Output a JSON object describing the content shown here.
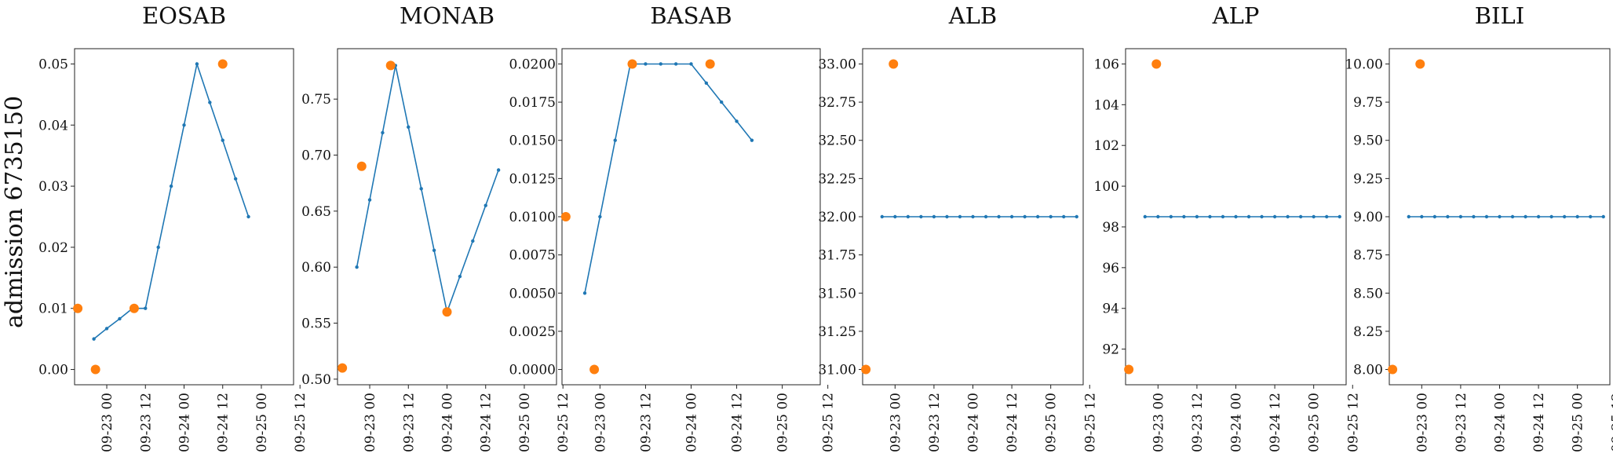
{
  "figure": {
    "ylabel": "admission 6735150"
  },
  "chart_data": [
    {
      "type": "line",
      "title": "EOSAB",
      "ylim": [
        -0.0025,
        0.0525
      ],
      "yticks": [
        0.0,
        0.01,
        0.02,
        0.03,
        0.04,
        0.05
      ],
      "ytick_labels": [
        "0.00",
        "0.01",
        "0.02",
        "0.03",
        "0.04",
        "0.05"
      ],
      "xlim": [
        -10,
        58
      ],
      "xticks": [
        0,
        12,
        24,
        36,
        48,
        60
      ],
      "xtick_labels": [
        "09-23 00",
        "09-23 12",
        "09-24 00",
        "09-24 12",
        "09-25 00",
        "09-25 12"
      ],
      "series": [
        {
          "style": "line",
          "x": [
            -4,
            0,
            4,
            8,
            12,
            16,
            20,
            24,
            28,
            32,
            36,
            40,
            44,
            48,
            52,
            56
          ],
          "y": [
            0.005,
            0.0067,
            0.0083,
            0.01,
            0.01,
            0.02,
            0.03,
            0.04,
            0.05,
            0.0437,
            0.0375,
            0.0312,
            0.025,
            null,
            null,
            null
          ]
        },
        {
          "style": "points",
          "x": [
            -9,
            -3.5,
            8.5,
            36
          ],
          "y": [
            0.01,
            0.0,
            0.01,
            0.05
          ]
        }
      ]
    },
    {
      "type": "line",
      "title": "MONAB",
      "ylim": [
        0.495,
        0.795
      ],
      "yticks": [
        0.5,
        0.55,
        0.6,
        0.65,
        0.7,
        0.75
      ],
      "ytick_labels": [
        "0.50",
        "0.55",
        "0.60",
        "0.65",
        "0.70",
        "0.75"
      ],
      "xlim": [
        -10,
        58
      ],
      "xticks": [
        0,
        12,
        24,
        36,
        48,
        60
      ],
      "xtick_labels": [
        "09-23 00",
        "09-23 12",
        "09-24 00",
        "09-24 12",
        "09-25 00",
        "09-25 12"
      ],
      "series": [
        {
          "style": "line",
          "x": [
            -4,
            0,
            4,
            8,
            12,
            16,
            20,
            24,
            28,
            32,
            36,
            40,
            44,
            48,
            52,
            56
          ],
          "y": [
            0.6,
            0.66,
            0.72,
            0.78,
            0.725,
            0.67,
            0.615,
            0.56,
            0.5917,
            0.6233,
            0.655,
            0.6867,
            null,
            null,
            null,
            null
          ]
        },
        {
          "style": "points",
          "x": [
            -8.5,
            -2.5,
            6.5,
            24
          ],
          "y": [
            0.51,
            0.69,
            0.78,
            0.56
          ]
        }
      ]
    },
    {
      "type": "line",
      "title": "BASAB",
      "ylim": [
        -0.001,
        0.021
      ],
      "yticks": [
        0.0,
        0.0025,
        0.005,
        0.0075,
        0.01,
        0.0125,
        0.015,
        0.0175,
        0.02
      ],
      "ytick_labels": [
        "0.0000",
        "0.0025",
        "0.0050",
        "0.0075",
        "0.0100",
        "0.0125",
        "0.0150",
        "0.0175",
        "0.0200"
      ],
      "xlim": [
        -10,
        58
      ],
      "xticks": [
        0,
        12,
        24,
        36,
        48,
        60
      ],
      "xtick_labels": [
        "09-23 00",
        "09-23 12",
        "09-24 00",
        "09-24 12",
        "09-25 00",
        "09-25 12"
      ],
      "series": [
        {
          "style": "line",
          "x": [
            -4,
            0,
            4,
            8,
            12,
            16,
            20,
            24,
            28,
            32,
            36,
            40
          ],
          "y": [
            0.005,
            0.01,
            0.015,
            0.02,
            0.02,
            0.02,
            0.02,
            0.02,
            0.01875,
            0.0175,
            0.01625,
            0.015
          ]
        },
        {
          "style": "points",
          "x": [
            -9,
            -1.5,
            8.5,
            29
          ],
          "y": [
            0.01,
            0.0,
            0.02,
            0.02
          ]
        }
      ]
    },
    {
      "type": "line",
      "title": "ALB",
      "ylim": [
        30.9,
        33.1
      ],
      "yticks": [
        31.0,
        31.25,
        31.5,
        31.75,
        32.0,
        32.25,
        32.5,
        32.75,
        33.0
      ],
      "ytick_labels": [
        "31.00",
        "31.25",
        "31.50",
        "31.75",
        "32.00",
        "32.25",
        "32.50",
        "32.75",
        "33.00"
      ],
      "xlim": [
        -10,
        58
      ],
      "xticks": [
        0,
        12,
        24,
        36,
        48,
        60
      ],
      "xtick_labels": [
        "09-23 00",
        "09-23 12",
        "09-24 00",
        "09-24 12",
        "09-25 00",
        "09-25 12"
      ],
      "series": [
        {
          "style": "line",
          "x": [
            -4,
            0,
            4,
            8,
            12,
            16,
            20,
            24,
            28,
            32,
            36,
            40,
            44,
            48,
            52,
            56
          ],
          "y": [
            32,
            32,
            32,
            32,
            32,
            32,
            32,
            32,
            32,
            32,
            32,
            32,
            32,
            32,
            32,
            32
          ]
        },
        {
          "style": "points",
          "x": [
            -9,
            -0.5
          ],
          "y": [
            31.0,
            33.0
          ]
        }
      ]
    },
    {
      "type": "line",
      "title": "ALP",
      "ylim": [
        90.25,
        106.75
      ],
      "yticks": [
        92,
        94,
        96,
        98,
        100,
        102,
        104,
        106
      ],
      "ytick_labels": [
        "92",
        "94",
        "96",
        "98",
        "100",
        "102",
        "104",
        "106"
      ],
      "xlim": [
        -10,
        58
      ],
      "xticks": [
        0,
        12,
        24,
        36,
        48,
        60
      ],
      "xtick_labels": [
        "09-23 00",
        "09-23 12",
        "09-24 00",
        "09-24 12",
        "09-25 00",
        "09-25 12"
      ],
      "series": [
        {
          "style": "line",
          "x": [
            -4,
            0,
            4,
            8,
            12,
            16,
            20,
            24,
            28,
            32,
            36,
            40,
            44,
            48,
            52,
            56
          ],
          "y": [
            98.5,
            98.5,
            98.5,
            98.5,
            98.5,
            98.5,
            98.5,
            98.5,
            98.5,
            98.5,
            98.5,
            98.5,
            98.5,
            98.5,
            98.5,
            98.5
          ]
        },
        {
          "style": "points",
          "x": [
            -9,
            -0.5
          ],
          "y": [
            91,
            106
          ]
        }
      ]
    },
    {
      "type": "line",
      "title": "BILI",
      "ylim": [
        7.9,
        10.1
      ],
      "yticks": [
        8.0,
        8.25,
        8.5,
        8.75,
        9.0,
        9.25,
        9.5,
        9.75,
        10.0
      ],
      "ytick_labels": [
        "8.00",
        "8.25",
        "8.50",
        "8.75",
        "9.00",
        "9.25",
        "9.50",
        "9.75",
        "10.00"
      ],
      "xlim": [
        -10,
        58
      ],
      "xticks": [
        0,
        12,
        24,
        36,
        48,
        60
      ],
      "xtick_labels": [
        "09-23 00",
        "09-23 12",
        "09-24 00",
        "09-24 12",
        "09-25 00",
        "09-25 12"
      ],
      "series": [
        {
          "style": "line",
          "x": [
            -4,
            0,
            4,
            8,
            12,
            16,
            20,
            24,
            28,
            32,
            36,
            40,
            44,
            48,
            52,
            56
          ],
          "y": [
            9,
            9,
            9,
            9,
            9,
            9,
            9,
            9,
            9,
            9,
            9,
            9,
            9,
            9,
            9,
            9
          ]
        },
        {
          "style": "points",
          "x": [
            -9,
            -0.5
          ],
          "y": [
            8,
            10
          ]
        }
      ]
    }
  ],
  "colors": {
    "line": "#1f77b4",
    "observed": "#ff7f0e"
  }
}
